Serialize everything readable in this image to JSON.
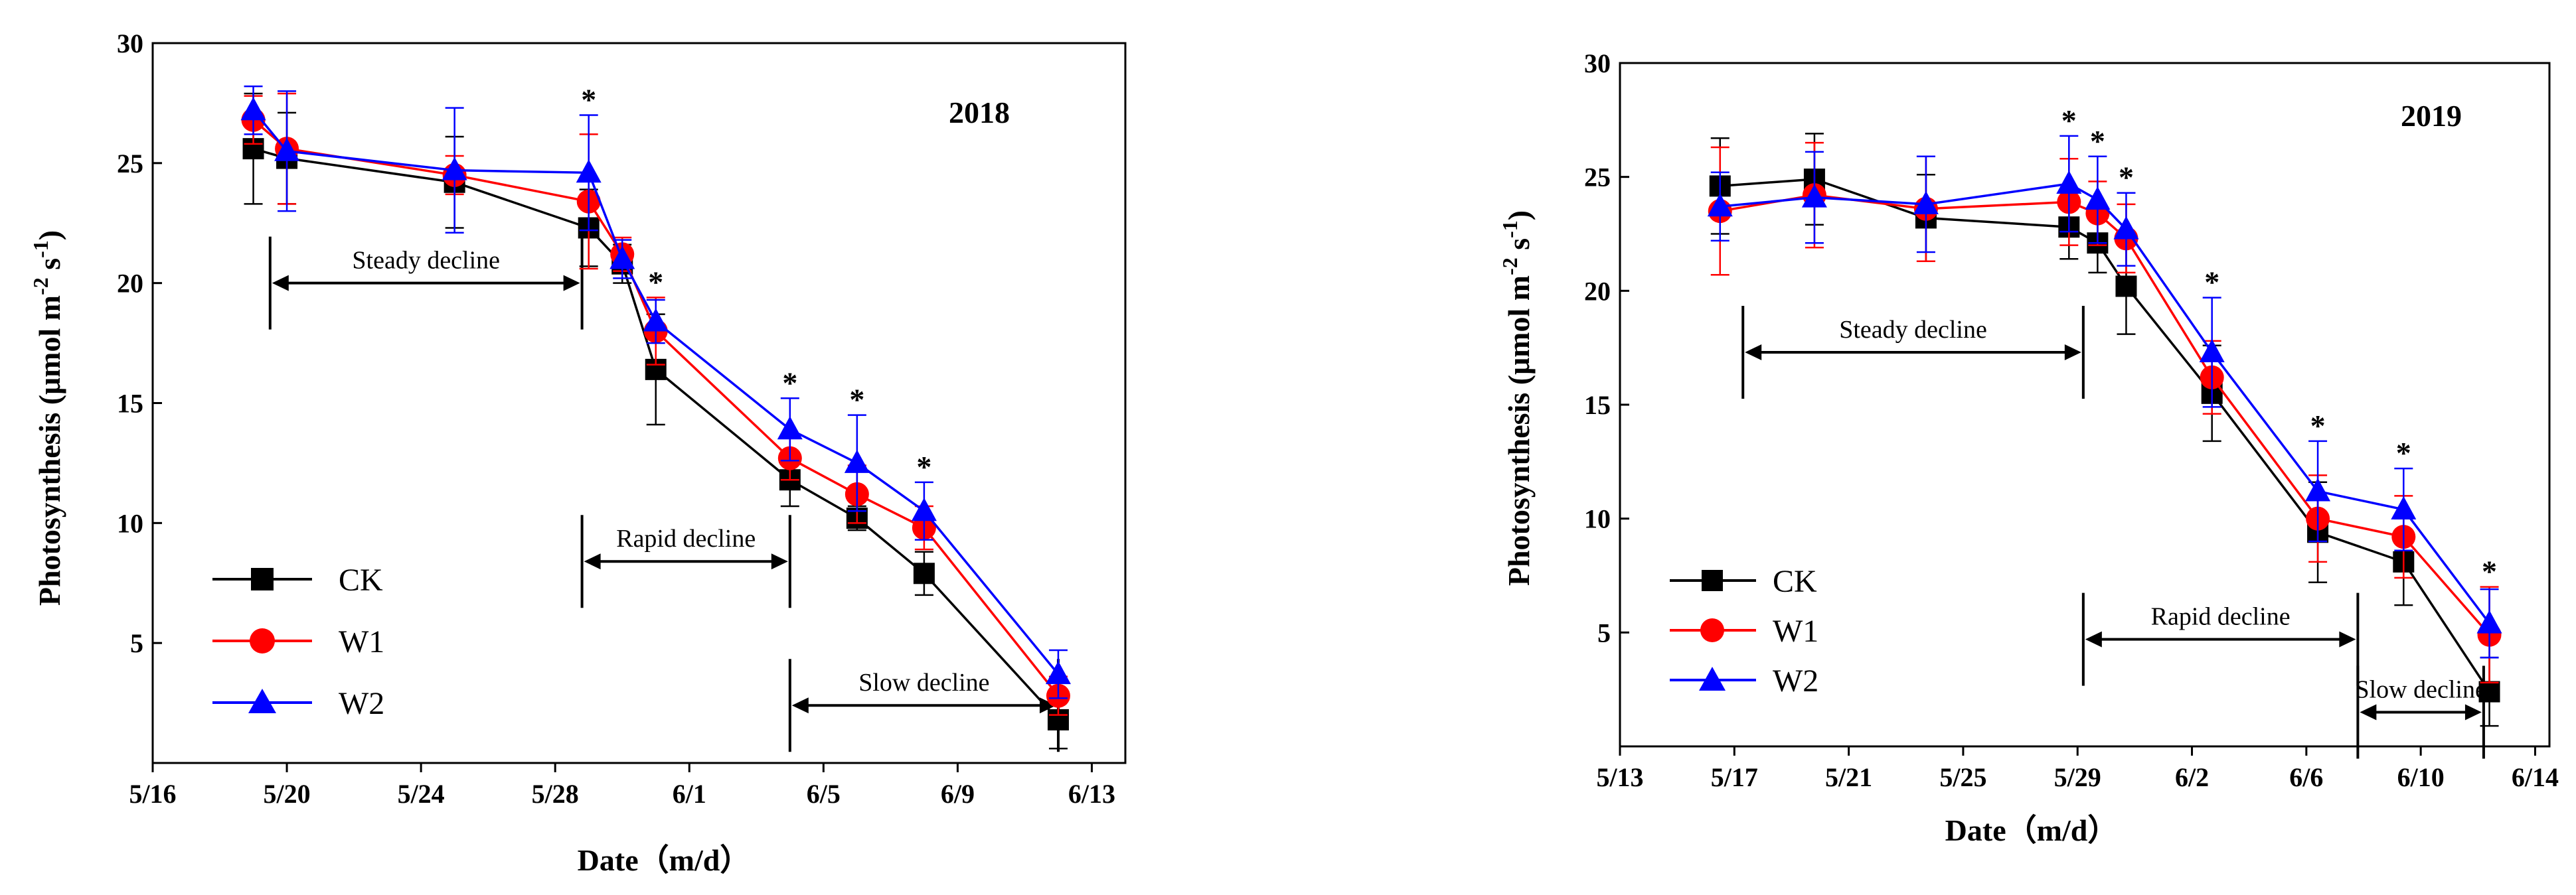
{
  "charts": [
    {
      "title": "2018",
      "ylabel_main": "Photosynthesis (μmol m",
      "ylabel_sup1": "-2",
      "ylabel_mid": " s",
      "ylabel_sup2": "-1",
      "ylabel_end": ")",
      "xlabel": "Date（m/d）",
      "legend": [
        "CK",
        "W1",
        "W2"
      ],
      "phases": [
        "Steady decline",
        "Rapid decline",
        "Slow decline"
      ]
    },
    {
      "title": "2019",
      "ylabel_main": "Photosynthesis (μmol m",
      "ylabel_sup1": "-2",
      "ylabel_mid": " s",
      "ylabel_sup2": "-1",
      "ylabel_end": ")",
      "xlabel": "Date（m/d）",
      "legend": [
        "CK",
        "W1",
        "W2"
      ],
      "phases": [
        "Steady decline",
        "Rapid decline",
        "Slow decline"
      ]
    }
  ],
  "colors": {
    "CK": "#000000",
    "W1": "#ff0000",
    "W2": "#0000ff",
    "axis": "#000000"
  },
  "chart_data": [
    {
      "type": "line",
      "title": "2018",
      "xlabel": "Date（m/d）",
      "ylabel": "Photosynthesis (μmol m-2 s-1)",
      "x_unit": "days since 5/16",
      "xlim": [
        0,
        29
      ],
      "ylim": [
        0,
        30
      ],
      "xticks": [
        0,
        4,
        8,
        12,
        16,
        20,
        24,
        28
      ],
      "xtick_labels": [
        "5/16",
        "5/20",
        "5/24",
        "5/28",
        "6/1",
        "6/5",
        "6/9",
        "6/13"
      ],
      "yticks": [
        5,
        10,
        15,
        20,
        25,
        30
      ],
      "ytick_labels": [
        "5",
        "10",
        "15",
        "20",
        "25",
        "30"
      ],
      "x": [
        3,
        4,
        9,
        13,
        14,
        15,
        19,
        21,
        23,
        27
      ],
      "series": [
        {
          "name": "CK",
          "values": [
            25.6,
            25.2,
            24.2,
            22.3,
            20.8,
            16.4,
            11.8,
            10.2,
            7.9,
            1.8
          ],
          "errors": [
            2.3,
            1.9,
            1.9,
            1.6,
            0.8,
            2.3,
            1.1,
            0.5,
            0.9,
            1.2
          ]
        },
        {
          "name": "W1",
          "values": [
            26.8,
            25.6,
            24.5,
            23.4,
            21.2,
            18.0,
            12.7,
            11.2,
            9.8,
            2.8
          ],
          "errors": [
            1.0,
            2.3,
            0.8,
            2.8,
            0.7,
            1.4,
            0.9,
            1.2,
            0.9,
            0.8
          ]
        },
        {
          "name": "W2",
          "values": [
            27.2,
            25.5,
            24.7,
            24.6,
            21.0,
            18.4,
            13.9,
            12.5,
            10.5,
            3.7
          ],
          "errors": [
            1.0,
            2.5,
            2.6,
            2.4,
            0.8,
            0.9,
            1.3,
            2.0,
            1.2,
            1.0
          ]
        }
      ],
      "significance_x": [
        13,
        15,
        19,
        21,
        23
      ],
      "phases": [
        {
          "label": "Steady decline",
          "x_start": 3.5,
          "x_end": 12.8,
          "y": 20
        },
        {
          "label": "Rapid decline",
          "x_start": 12.8,
          "x_end": 19,
          "y": 8.4
        },
        {
          "label": "Slow decline",
          "x_start": 19,
          "x_end": 27,
          "y": 2.4
        }
      ],
      "legend_position": "bottom-left"
    },
    {
      "type": "line",
      "title": "2019",
      "xlabel": "Date（m/d）",
      "ylabel": "Photosynthesis (μmol m-2 s-1)",
      "x_unit": "days since 5/13",
      "xlim": [
        0,
        32.5
      ],
      "ylim": [
        0,
        30
      ],
      "xticks": [
        0,
        4,
        8,
        12,
        16,
        20,
        24,
        28,
        32
      ],
      "xtick_labels": [
        "5/13",
        "5/17",
        "5/21",
        "5/25",
        "5/29",
        "6/2",
        "6/6",
        "6/10",
        "6/14"
      ],
      "yticks": [
        5,
        10,
        15,
        20,
        25,
        30
      ],
      "ytick_labels": [
        "5",
        "10",
        "15",
        "20",
        "25",
        "30"
      ],
      "x": [
        3.5,
        6.8,
        10.7,
        15.7,
        16.7,
        17.7,
        20.7,
        24.4,
        27.4,
        30.4
      ],
      "series": [
        {
          "name": "CK",
          "values": [
            24.6,
            24.9,
            23.2,
            22.8,
            22.1,
            20.2,
            15.5,
            9.4,
            8.1,
            2.4
          ],
          "errors": [
            2.1,
            2.0,
            1.9,
            1.4,
            1.3,
            2.1,
            2.1,
            2.2,
            1.9,
            1.5
          ]
        },
        {
          "name": "W1",
          "values": [
            23.5,
            24.2,
            23.6,
            23.9,
            23.4,
            22.3,
            16.2,
            10.0,
            9.2,
            4.9
          ],
          "errors": [
            2.8,
            2.3,
            2.3,
            1.9,
            1.4,
            1.5,
            1.6,
            1.9,
            1.8,
            2.1
          ]
        },
        {
          "name": "W2",
          "values": [
            23.7,
            24.1,
            23.8,
            24.7,
            24.0,
            22.7,
            17.3,
            11.2,
            10.4,
            5.4
          ],
          "errors": [
            1.5,
            2.0,
            2.1,
            2.1,
            1.9,
            1.6,
            2.4,
            2.2,
            1.8,
            1.5
          ]
        }
      ],
      "significance_x": [
        15.7,
        16.7,
        17.7,
        20.7,
        24.4,
        27.4,
        30.4
      ],
      "phases": [
        {
          "label": "Steady decline",
          "x_start": 4.3,
          "x_end": 16.2,
          "y": 17.3
        },
        {
          "label": "Rapid decline",
          "x_start": 16.2,
          "x_end": 25.8,
          "y": 4.7
        },
        {
          "label": "Slow decline",
          "x_start": 25.8,
          "x_end": 30.2,
          "y": 1.5
        }
      ],
      "legend_position": "bottom-left"
    }
  ]
}
